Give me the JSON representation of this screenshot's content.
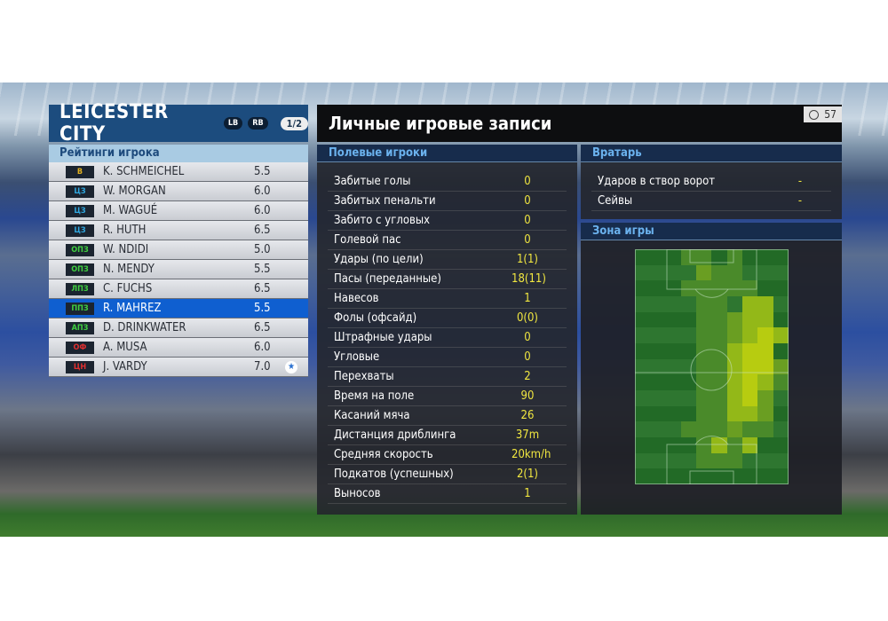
{
  "left_panel": {
    "team": "LEICESTER CITY",
    "lb": "LB",
    "rb": "RB",
    "page": "1/2",
    "subtitle": "Рейтинги игрока",
    "players": [
      {
        "pos": "В",
        "pos_color": "#e0b020",
        "name": "K. SCHMEICHEL",
        "rating": "5.5"
      },
      {
        "pos": "ЦЗ",
        "pos_color": "#30a8e0",
        "name": "W. MORGAN",
        "rating": "6.0"
      },
      {
        "pos": "ЦЗ",
        "pos_color": "#30a8e0",
        "name": "M. WAGUÉ",
        "rating": "6.0"
      },
      {
        "pos": "ЦЗ",
        "pos_color": "#30a8e0",
        "name": "R. HUTH",
        "rating": "6.5"
      },
      {
        "pos": "ОПЗ",
        "pos_color": "#40d040",
        "name": "W. NDIDI",
        "rating": "5.0"
      },
      {
        "pos": "ОПЗ",
        "pos_color": "#40d040",
        "name": "N. MENDY",
        "rating": "5.5"
      },
      {
        "pos": "ЛПЗ",
        "pos_color": "#40d040",
        "name": "C. FUCHS",
        "rating": "6.5"
      },
      {
        "pos": "ППЗ",
        "pos_color": "#40d040",
        "name": "R. MAHREZ",
        "rating": "5.5",
        "selected": true
      },
      {
        "pos": "АПЗ",
        "pos_color": "#40d040",
        "name": "D. DRINKWATER",
        "rating": "6.5"
      },
      {
        "pos": "ОФ",
        "pos_color": "#e03030",
        "name": "A. MUSA",
        "rating": "6.0"
      },
      {
        "pos": "ЦН",
        "pos_color": "#e03030",
        "name": "J. VARDY",
        "rating": "7.0",
        "star": true
      }
    ]
  },
  "right_panel": {
    "title": "Личные игровые записи",
    "timer": "57",
    "outfield": {
      "header": "Полевые игроки",
      "stats": [
        {
          "label": "Забитые голы",
          "value": "0"
        },
        {
          "label": "Забитых пенальти",
          "value": "0"
        },
        {
          "label": "Забито с угловых",
          "value": "0"
        },
        {
          "label": "Голевой пас",
          "value": "0"
        },
        {
          "label": "Удары (по цели)",
          "value": "1(1)"
        },
        {
          "label": "Пасы (переданные)",
          "value": "18(11)"
        },
        {
          "label": "Навесов",
          "value": "1"
        },
        {
          "label": "Фолы (офсайд)",
          "value": "0(0)"
        },
        {
          "label": "Штрафные удары",
          "value": "0"
        },
        {
          "label": "Угловые",
          "value": "0"
        },
        {
          "label": "Перехваты",
          "value": "2"
        },
        {
          "label": "Время на поле",
          "value": "90"
        },
        {
          "label": "Касаний мяча",
          "value": "26"
        },
        {
          "label": "Дистанция дриблинга",
          "value": "37m"
        },
        {
          "label": "Средняя скорость",
          "value": "20km/h"
        },
        {
          "label": "Подкатов (успешных)",
          "value": "2(1)"
        },
        {
          "label": "Выносов",
          "value": "1"
        }
      ]
    },
    "goalkeeper": {
      "header": "Вратарь",
      "stats": [
        {
          "label": "Ударов в створ ворот",
          "value": "-"
        },
        {
          "label": "Сейвы",
          "value": "-"
        }
      ]
    },
    "zone": {
      "header": "Зона игры",
      "heatmap_intensity": [
        [
          0,
          0,
          0,
          1,
          1,
          0,
          1,
          0,
          0,
          0
        ],
        [
          0,
          0,
          0,
          0,
          2,
          1,
          1,
          0,
          0,
          0
        ],
        [
          0,
          0,
          0,
          1,
          1,
          1,
          1,
          1,
          0,
          0
        ],
        [
          0,
          0,
          0,
          0,
          1,
          1,
          0,
          3,
          3,
          0
        ],
        [
          0,
          0,
          0,
          0,
          1,
          1,
          2,
          3,
          3,
          0
        ],
        [
          0,
          0,
          0,
          0,
          1,
          1,
          2,
          3,
          4,
          3
        ],
        [
          0,
          0,
          0,
          0,
          1,
          1,
          3,
          4,
          4,
          0
        ],
        [
          0,
          0,
          0,
          0,
          1,
          1,
          3,
          4,
          4,
          2
        ],
        [
          0,
          0,
          0,
          0,
          1,
          1,
          3,
          4,
          3,
          1
        ],
        [
          0,
          0,
          0,
          0,
          1,
          1,
          3,
          4,
          2,
          0
        ],
        [
          0,
          0,
          0,
          0,
          1,
          1,
          3,
          3,
          2,
          0
        ],
        [
          0,
          0,
          0,
          1,
          1,
          1,
          2,
          1,
          1,
          0
        ],
        [
          0,
          0,
          0,
          0,
          1,
          3,
          1,
          3,
          0,
          0
        ],
        [
          0,
          0,
          0,
          0,
          1,
          1,
          1,
          0,
          0,
          0
        ],
        [
          0,
          0,
          0,
          0,
          0,
          0,
          0,
          0,
          0,
          0
        ]
      ]
    }
  },
  "colors": {
    "selected": "#0f5fd0",
    "stat_value": "#f0e640",
    "section_header": "#6bb2ee"
  }
}
